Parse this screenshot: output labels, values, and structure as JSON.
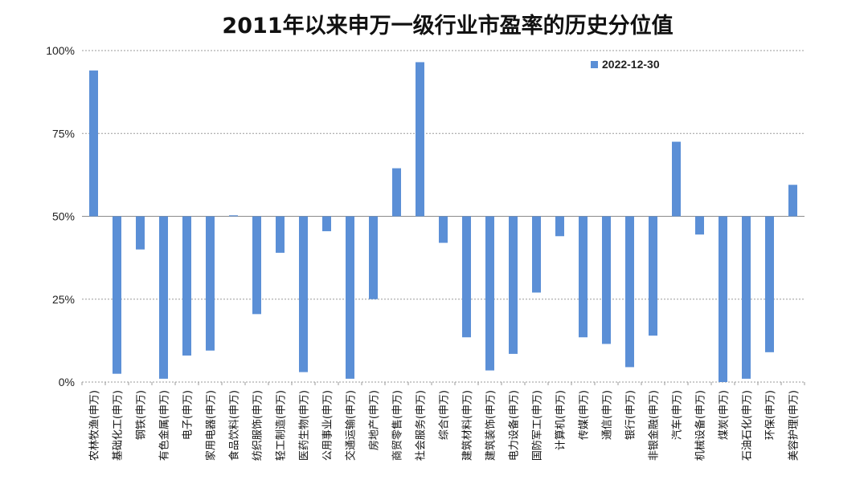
{
  "chart_data": {
    "type": "bar",
    "title": "2011年以来申万一级行业市盈率的历史分位值",
    "xlabel": "",
    "ylabel": "",
    "ylim": [
      0,
      100
    ],
    "yticks": [
      "100%",
      "75%",
      "50%",
      "25%",
      "0%"
    ],
    "baseline": 50,
    "grid": true,
    "legend_position": "top-right",
    "bar_color": "#5b8fd6",
    "categories": [
      "农林牧渔(申万)",
      "基础化工(申万)",
      "钢铁(申万)",
      "有色金属(申万)",
      "电子(申万)",
      "家用电器(申万)",
      "食品饮料(申万)",
      "纺织服饰(申万)",
      "轻工制造(申万)",
      "医药生物(申万)",
      "公用事业(申万)",
      "交通运输(申万)",
      "房地产(申万)",
      "商贸零售(申万)",
      "社会服务(申万)",
      "综合(申万)",
      "建筑材料(申万)",
      "建筑装饰(申万)",
      "电力设备(申万)",
      "国防军工(申万)",
      "计算机(申万)",
      "传媒(申万)",
      "通信(申万)",
      "银行(申万)",
      "非银金融(申万)",
      "汽车(申万)",
      "机械设备(申万)",
      "煤炭(申万)",
      "石油石化(申万)",
      "环保(申万)",
      "美容护理(申万)"
    ],
    "series": [
      {
        "name": "2022-12-30",
        "values": [
          94,
          2.5,
          40,
          1,
          8,
          9.5,
          50.3,
          20.5,
          39,
          3,
          45.5,
          1,
          25,
          64.5,
          96.5,
          42,
          13.5,
          3.5,
          8.5,
          27,
          44,
          13.5,
          11.5,
          4.5,
          14,
          72.5,
          44.5,
          0,
          1,
          9,
          59.5
        ]
      }
    ]
  }
}
